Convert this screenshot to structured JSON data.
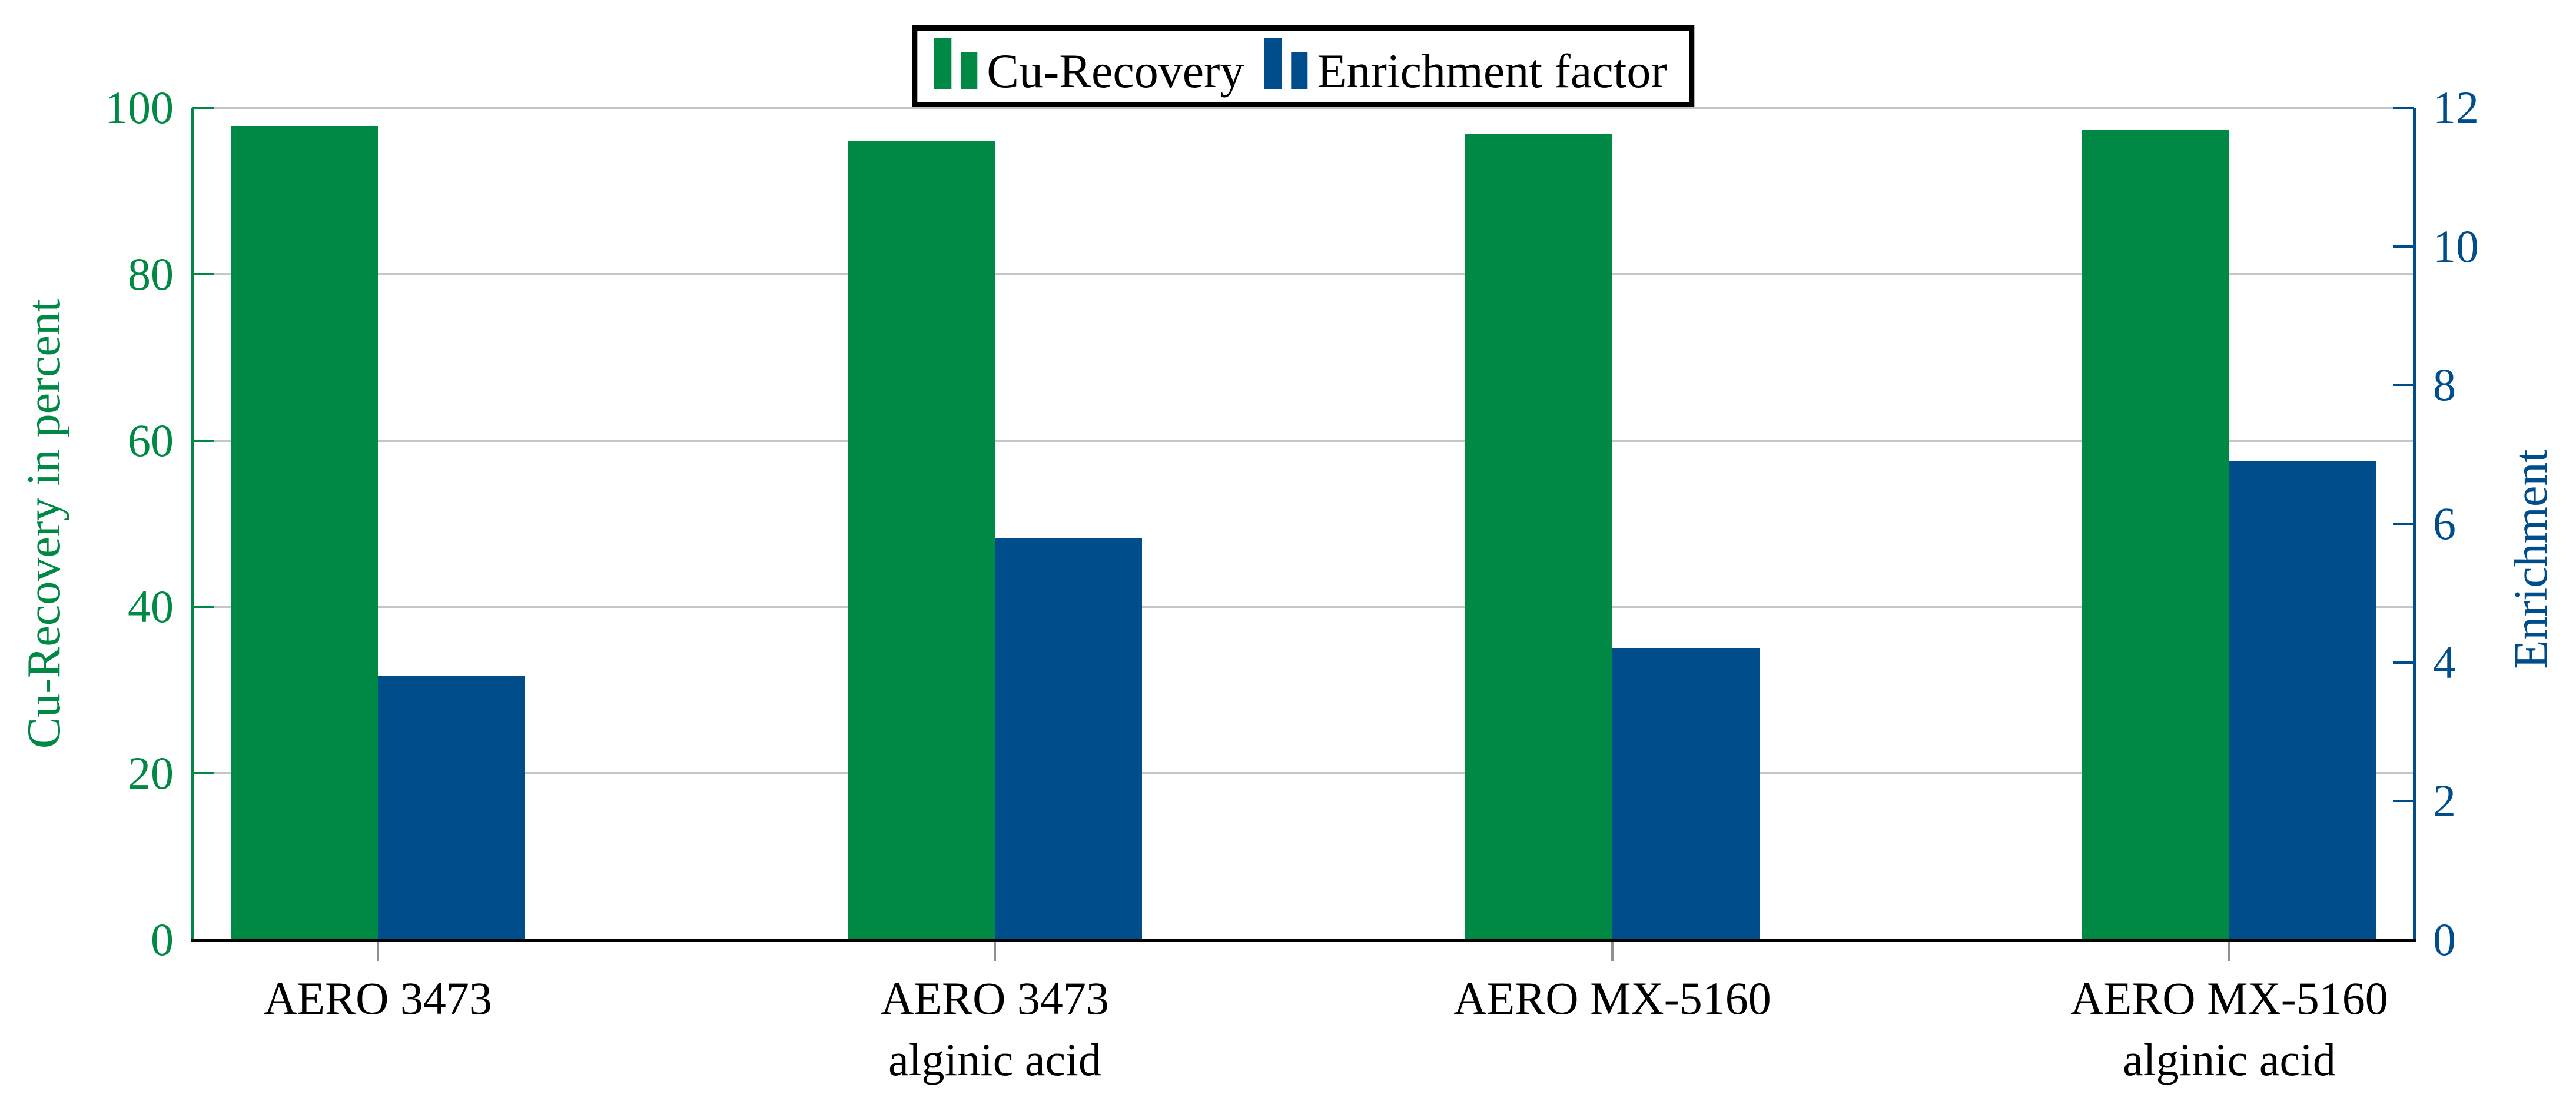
{
  "chart_data": {
    "type": "bar",
    "title": "",
    "categories": [
      "AERO 3473",
      "AERO 3473\nalginic acid",
      "AERO MX-5160",
      "AERO MX-5160\nalginic acid"
    ],
    "series": [
      {
        "name": "Cu-Recovery",
        "axis": "left",
        "color": "#008845",
        "values": [
          97.8,
          96.0,
          96.9,
          97.3
        ]
      },
      {
        "name": "Enrichment factor",
        "axis": "right",
        "color": "#004D8C",
        "values": [
          3.8,
          5.8,
          4.2,
          6.9
        ]
      }
    ],
    "left_axis": {
      "label": "Cu-Recovery in percent",
      "min": 0,
      "max": 100,
      "ticks": [
        0,
        20,
        40,
        60,
        80,
        100
      ],
      "color": "#008845"
    },
    "right_axis": {
      "label": "Enrichment",
      "min": 0,
      "max": 12,
      "ticks": [
        0,
        2,
        4,
        6,
        8,
        10,
        12
      ],
      "color": "#004D8C"
    },
    "grid": "horizontal-left-ticks",
    "legend_position": "top-center",
    "grid_color": "#c6c6c6",
    "x_axis_color": "#000000"
  },
  "legend": {
    "items": [
      {
        "label": "Cu-Recovery",
        "color": "#008845"
      },
      {
        "label": "Enrichment factor",
        "color": "#004D8C"
      }
    ]
  }
}
